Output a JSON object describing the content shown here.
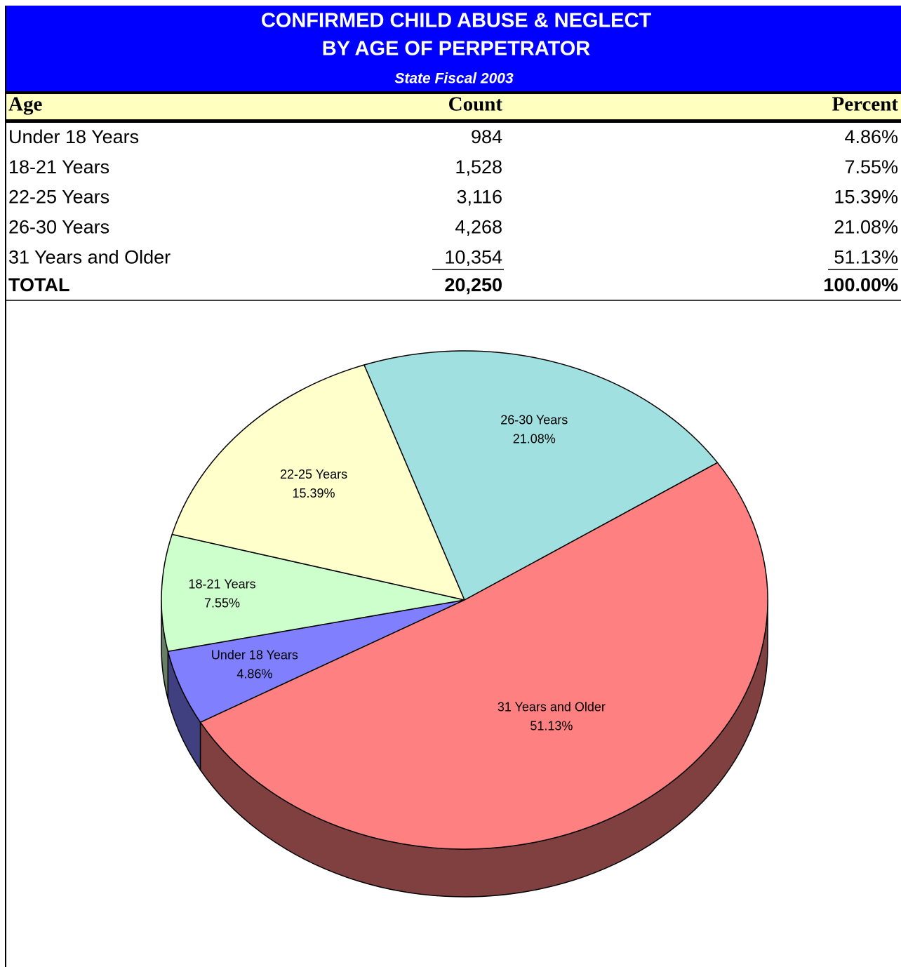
{
  "header": {
    "title_lines": [
      "CONFIRMED CHILD ABUSE & NEGLECT",
      "BY AGE OF PERPETRATOR"
    ],
    "subtitle": "State Fiscal 2003"
  },
  "table": {
    "columns": [
      "Age",
      "Count",
      "Percent"
    ],
    "rows": [
      [
        "Under 18 Years",
        "984",
        "4.86%"
      ],
      [
        "18-21 Years",
        "1,528",
        "7.55%"
      ],
      [
        "22-25 Years",
        "3,116",
        "15.39%"
      ],
      [
        "26-30 Years",
        "4,268",
        "21.08%"
      ],
      [
        "31 Years and Older",
        "10,354",
        "51.13%"
      ]
    ],
    "total": [
      "TOTAL",
      "20,250",
      "100.00%"
    ]
  },
  "chart_data": {
    "type": "pie",
    "categories": [
      "Under 18 Years",
      "18-21 Years",
      "22-25 Years",
      "26-30 Years",
      "31 Years and Older"
    ],
    "values": [
      4.86,
      7.55,
      15.39,
      21.08,
      51.13
    ],
    "value_labels": [
      "4.86%",
      "7.55%",
      "15.39%",
      "21.08%",
      "51.13%"
    ],
    "colors": [
      "#8080ff",
      "#ccffcc",
      "#ffffcc",
      "#a0e0e0",
      "#ff8080"
    ]
  }
}
